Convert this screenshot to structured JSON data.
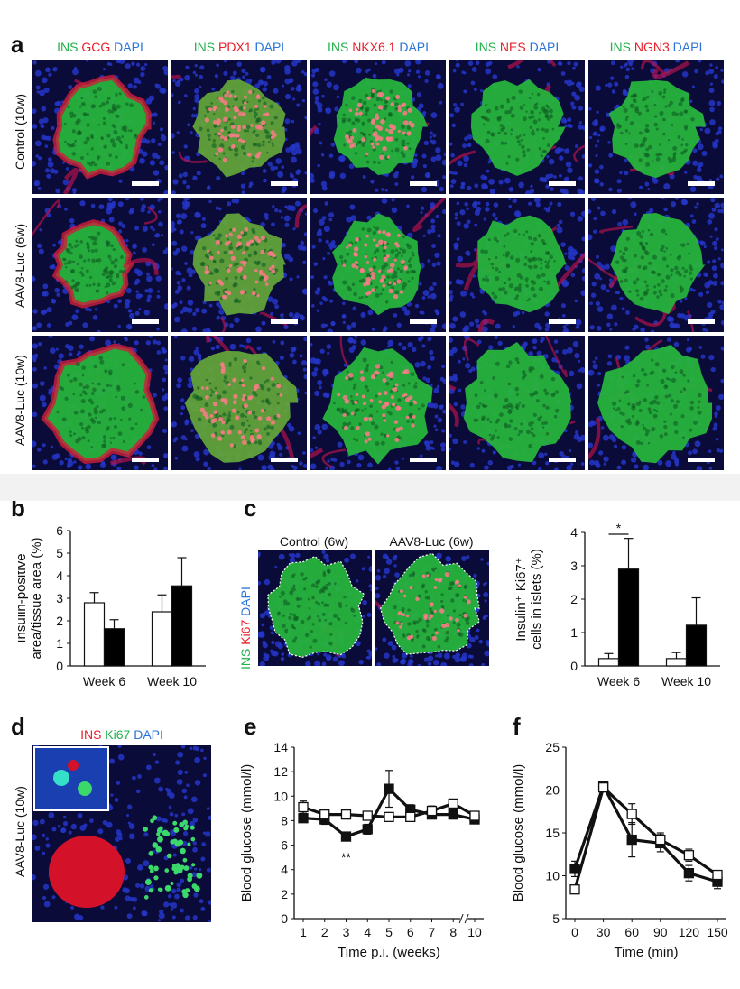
{
  "panel_letters": {
    "a": "a",
    "b": "b",
    "c": "c",
    "d": "d",
    "e": "e",
    "f": "f"
  },
  "panel_a": {
    "columns": [
      {
        "green": "INS",
        "red": "GCG",
        "blue": "DAPI"
      },
      {
        "green": "INS",
        "red": "PDX1",
        "blue": "DAPI"
      },
      {
        "green": "INS",
        "red": "NKX6.1",
        "blue": "DAPI"
      },
      {
        "green": "INS",
        "red": "NES",
        "blue": "DAPI"
      },
      {
        "green": "INS",
        "red": "NGN3",
        "blue": "DAPI"
      }
    ],
    "rows": [
      "Control (10w)",
      "AAV8-Luc (6w)",
      "AAV8-Luc (10w)"
    ]
  },
  "panel_c_images": {
    "titles": [
      "Control (6w)",
      "AAV8-Luc (6w)"
    ],
    "side_label": {
      "green": "INS",
      "red": "Ki67",
      "blue": "DAPI"
    }
  },
  "panel_d": {
    "top_label": {
      "red": "INS",
      "green": "Ki67",
      "blue": "DAPI"
    },
    "side_label": "AAV8-Luc (10w)"
  },
  "chart_data": [
    {
      "id": "b",
      "type": "bar",
      "ylabel_line1": "Insulin-positive",
      "ylabel_line2": "area/tissue area (%)",
      "categories": [
        "Week 6",
        "Week 10"
      ],
      "ylim": [
        0,
        6
      ],
      "yticks": [
        "0",
        "1",
        "2",
        "3",
        "4",
        "5",
        "6"
      ],
      "series": [
        {
          "fill": "#ffffff",
          "values": [
            2.8,
            2.4
          ],
          "errors": [
            0.45,
            0.75
          ]
        },
        {
          "fill": "#000000",
          "values": [
            1.65,
            3.55
          ],
          "errors": [
            0.4,
            1.25
          ]
        }
      ]
    },
    {
      "id": "c",
      "type": "bar",
      "ylabel_line1": "Insulin⁺ Ki67⁺",
      "ylabel_line2": "cells in islets (%)",
      "categories": [
        "Week 6",
        "Week 10"
      ],
      "ylim": [
        0,
        4
      ],
      "yticks": [
        "0",
        "1",
        "2",
        "3",
        "4"
      ],
      "series": [
        {
          "fill": "#ffffff",
          "values": [
            0.22,
            0.22
          ],
          "errors": [
            0.15,
            0.18
          ]
        },
        {
          "fill": "#000000",
          "values": [
            2.9,
            1.22
          ],
          "errors": [
            0.92,
            0.82
          ]
        }
      ],
      "annotation": "*"
    },
    {
      "id": "e",
      "type": "line",
      "ylabel": "Blood glucose (mmol/l)",
      "xlabel": "Time p.i. (weeks)",
      "x_ticks": [
        "1",
        "2",
        "3",
        "4",
        "5",
        "6",
        "7",
        "8",
        "10"
      ],
      "ylim": [
        0,
        14
      ],
      "yticks": [
        "0",
        "2",
        "4",
        "6",
        "8",
        "10",
        "12",
        "14"
      ],
      "series": [
        {
          "marker": "open",
          "values": [
            9.1,
            8.5,
            8.5,
            8.4,
            8.3,
            8.3,
            8.8,
            9.4,
            8.4
          ],
          "errors": [
            0.5,
            0.4,
            0.3,
            0.3,
            0.3,
            0.3,
            0.4,
            0.3,
            0.3
          ]
        },
        {
          "marker": "filled",
          "values": [
            8.2,
            8.1,
            6.7,
            7.3,
            10.6,
            8.9,
            8.5,
            8.5,
            8.1
          ],
          "errors": [
            0.3,
            0.4,
            0.3,
            0.4,
            1.5,
            0.4,
            0.3,
            0.3,
            0.3
          ]
        }
      ],
      "annotation": "**"
    },
    {
      "id": "f",
      "type": "line",
      "ylabel": "Blood glucose (mmol/l)",
      "xlabel": "Time (min)",
      "x": [
        0,
        30,
        60,
        90,
        120,
        150
      ],
      "x_ticks": [
        "0",
        "30",
        "60",
        "90",
        "120",
        "150"
      ],
      "ylim": [
        5,
        25
      ],
      "yticks": [
        "5",
        "10",
        "15",
        "20",
        "25"
      ],
      "series": [
        {
          "marker": "open",
          "values": [
            8.4,
            20.3,
            17.2,
            14.2,
            12.4,
            10.1
          ],
          "errors": [
            0.4,
            0.5,
            1.2,
            0.8,
            0.7,
            0.5
          ]
        },
        {
          "marker": "filled",
          "values": [
            10.8,
            20.5,
            14.2,
            13.8,
            10.3,
            9.3
          ],
          "errors": [
            0.9,
            0.4,
            2.0,
            1.0,
            0.9,
            0.8
          ]
        }
      ]
    }
  ]
}
